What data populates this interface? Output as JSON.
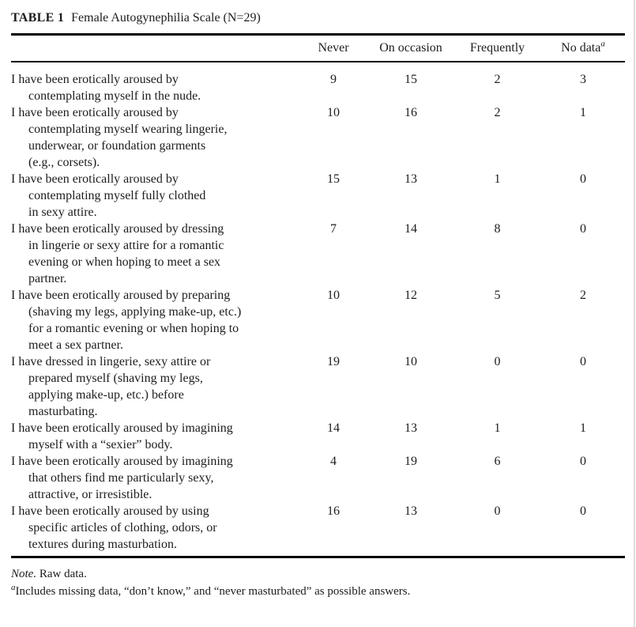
{
  "page": {
    "background": "#ffffff",
    "text_color": "#1d1d1d",
    "rule_color": "#000000"
  },
  "caption": {
    "label": "TABLE 1",
    "title": "Female Autogynephilia Scale (N=29)"
  },
  "table": {
    "columns": [
      {
        "label": "Never",
        "superscript": ""
      },
      {
        "label": "On occasion",
        "superscript": ""
      },
      {
        "label": "Frequently",
        "superscript": ""
      },
      {
        "label": "No data",
        "superscript": "a"
      }
    ],
    "rows": [
      {
        "lines": [
          "I have been erotically aroused by",
          "contemplating myself in the nude."
        ],
        "values": [
          9,
          15,
          2,
          3
        ]
      },
      {
        "lines": [
          "I have been erotically aroused by",
          "contemplating myself wearing lingerie,",
          "underwear, or foundation garments",
          "(e.g., corsets)."
        ],
        "values": [
          10,
          16,
          2,
          1
        ]
      },
      {
        "lines": [
          "I have been erotically aroused by",
          "contemplating myself fully clothed",
          "in sexy attire."
        ],
        "values": [
          15,
          13,
          1,
          0
        ]
      },
      {
        "lines": [
          "I have been erotically aroused by dressing",
          "in lingerie or sexy attire for a romantic",
          "evening or when hoping to meet a sex",
          "partner."
        ],
        "values": [
          7,
          14,
          8,
          0
        ]
      },
      {
        "lines": [
          "I have been erotically aroused by preparing",
          "(shaving my legs, applying make-up, etc.)",
          "for a romantic evening or when hoping to",
          "meet a sex partner."
        ],
        "values": [
          10,
          12,
          5,
          2
        ]
      },
      {
        "lines": [
          "I have dressed in lingerie, sexy attire or",
          "prepared myself (shaving my legs,",
          "applying make-up, etc.) before",
          "masturbating."
        ],
        "values": [
          19,
          10,
          0,
          0
        ]
      },
      {
        "lines": [
          "I have been erotically aroused by imagining",
          "myself with a “sexier” body."
        ],
        "values": [
          14,
          13,
          1,
          1
        ]
      },
      {
        "lines": [
          "I have been erotically aroused by imagining",
          "that others find me particularly sexy,",
          "attractive, or irresistible."
        ],
        "values": [
          4,
          19,
          6,
          0
        ]
      },
      {
        "lines": [
          "I have been erotically aroused by using",
          "specific articles of clothing, odors, or",
          "textures during masturbation."
        ],
        "values": [
          16,
          13,
          0,
          0
        ]
      }
    ]
  },
  "notes": {
    "note_label": "Note.",
    "note_text": "Raw data.",
    "footnote_marker": "a",
    "footnote_text": "Includes missing data, “don’t know,” and “never masturbated” as possible answers."
  }
}
